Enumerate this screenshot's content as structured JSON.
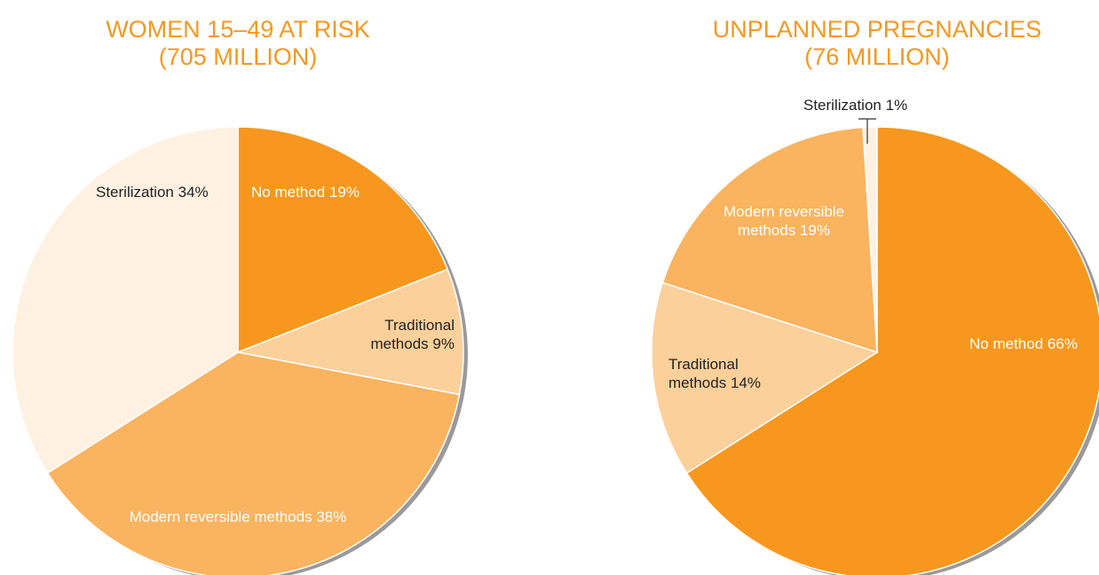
{
  "chart_data": [
    {
      "type": "pie",
      "title": "WOMEN 15–49 AT RISK",
      "subtitle": "(705 MILLION)",
      "categories": [
        "No method",
        "Traditional methods",
        "Modern reversible methods",
        "Sterilization"
      ],
      "values": [
        19,
        9,
        38,
        34
      ],
      "value_labels": [
        "19%",
        "9%",
        "38%",
        "34%"
      ],
      "colors": [
        "#f7971e",
        "#fcd09a",
        "#fab35f",
        "#fef1e2"
      ]
    },
    {
      "type": "pie",
      "title": "UNPLANNED PREGNANCIES",
      "subtitle": "(76 MILLION)",
      "categories": [
        "No method",
        "Traditional methods",
        "Modern reversible methods",
        "Sterilization"
      ],
      "values": [
        66,
        14,
        19,
        1
      ],
      "value_labels": [
        "66%",
        "14%",
        "19%",
        "1%"
      ],
      "colors": [
        "#f7971e",
        "#fcd09a",
        "#fab35f",
        "#fef1e2"
      ]
    }
  ]
}
